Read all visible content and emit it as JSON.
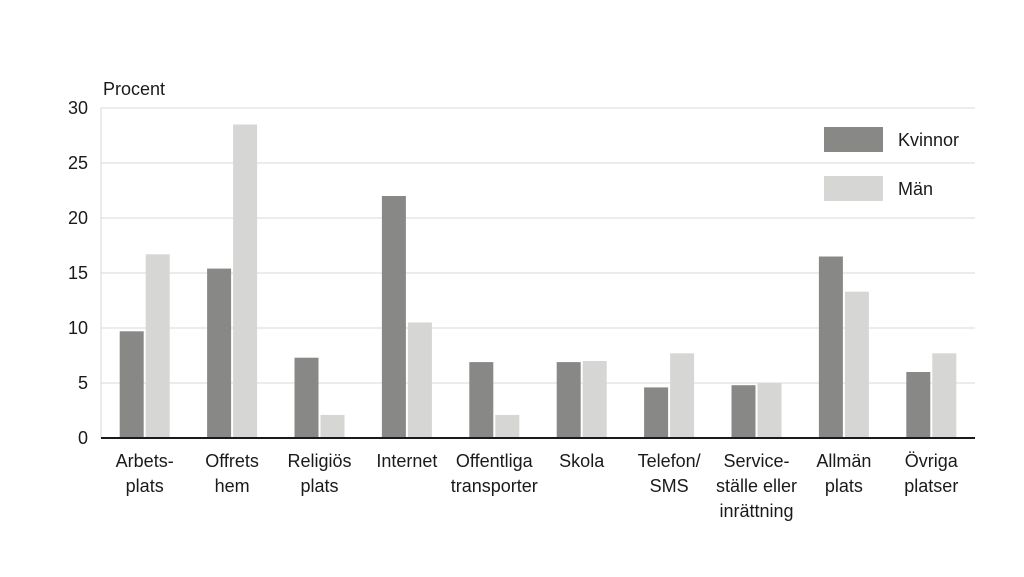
{
  "chart_data": {
    "type": "bar",
    "ylabel": "Procent",
    "ylim": [
      0,
      30
    ],
    "yticks": [
      0,
      5,
      10,
      15,
      20,
      25,
      30
    ],
    "grid": true,
    "legend_position": "top-right",
    "categories": [
      [
        "Arbets-",
        "plats"
      ],
      [
        "Offrets",
        "hem"
      ],
      [
        "Religiös",
        "plats"
      ],
      [
        "Internet"
      ],
      [
        "Offentliga",
        "transporter"
      ],
      [
        "Skola"
      ],
      [
        "Telefon/",
        "SMS"
      ],
      [
        "Service-",
        "ställe eller",
        "inrättning"
      ],
      [
        "Allmän",
        "plats"
      ],
      [
        "Övriga",
        "platser"
      ]
    ],
    "series": [
      {
        "name": "Kvinnor",
        "color": "#888887",
        "values": [
          9.7,
          15.4,
          7.3,
          22.0,
          6.9,
          6.9,
          4.6,
          4.8,
          16.5,
          6.0
        ]
      },
      {
        "name": "Män",
        "color": "#d6d6d5",
        "values": [
          16.7,
          28.5,
          2.1,
          10.5,
          2.1,
          7.0,
          7.7,
          5.0,
          13.3,
          7.7
        ]
      }
    ]
  }
}
